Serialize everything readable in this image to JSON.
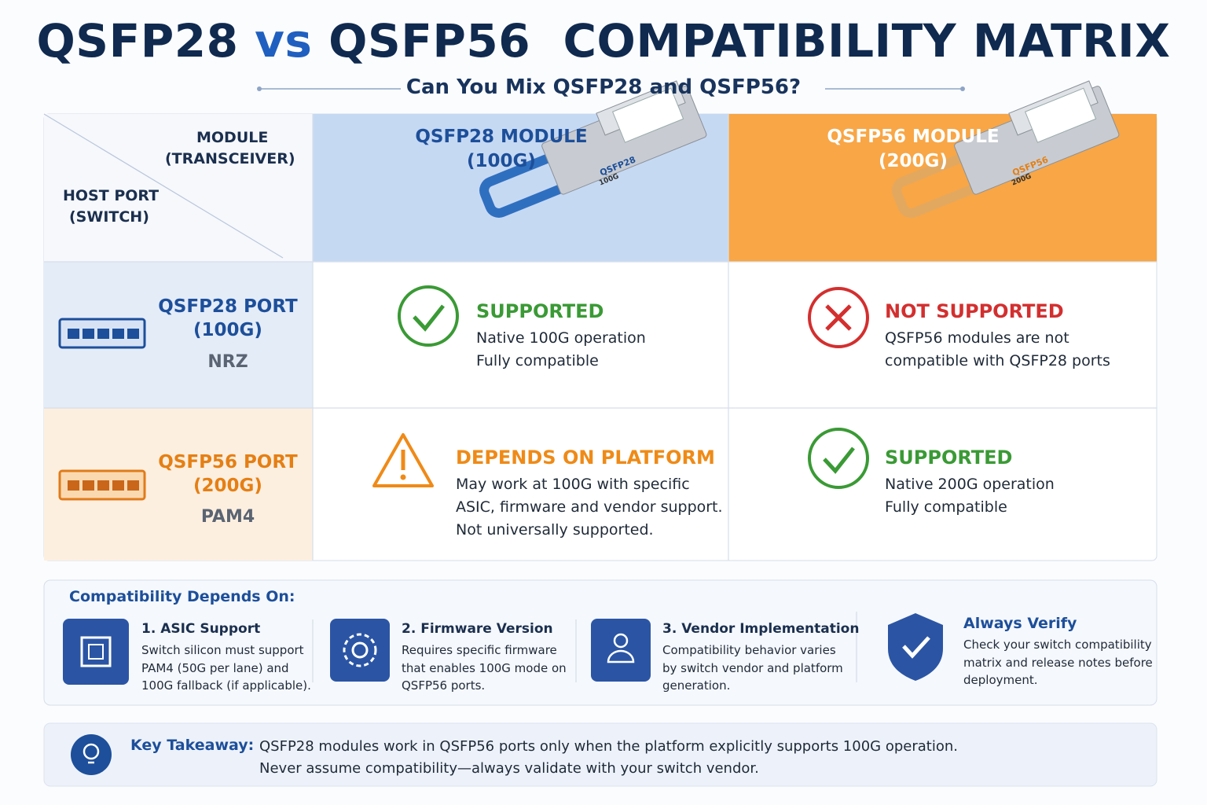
{
  "header": {
    "title_parts": [
      "QSFP28",
      "vs",
      "QSFP56  COMPATIBILITY MATRIX"
    ],
    "subtitle": "Can You Mix QSFP28 and QSFP56?"
  },
  "matrix": {
    "corner": {
      "module_lines": [
        "MODULE",
        "(TRANSCEIVER)"
      ],
      "host_lines": [
        "HOST PORT",
        "(SWITCH)"
      ]
    },
    "columns": [
      {
        "name": "QSFP28 MODULE",
        "speed": "(100G)",
        "module_label": "QSFP28",
        "module_speed": "100G"
      },
      {
        "name": "QSFP56 MODULE",
        "speed": "(200G)",
        "module_label": "QSFP56",
        "module_speed": "200G"
      }
    ],
    "rows": [
      {
        "name": "QSFP28 PORT",
        "speed": "(100G)",
        "encoding": "NRZ",
        "cells": [
          {
            "status": "SUPPORTED",
            "lines": [
              "Native 100G operation",
              "Fully compatible"
            ]
          },
          {
            "status": "NOT SUPPORTED",
            "lines": [
              "QSFP56 modules are not",
              "compatible with QSFP28 ports"
            ]
          }
        ]
      },
      {
        "name": "QSFP56 PORT",
        "speed": "(200G)",
        "encoding": "PAM4",
        "cells": [
          {
            "status": "DEPENDS ON PLATFORM",
            "lines": [
              "May work at 100G with specific",
              "ASIC, firmware and vendor support.",
              "Not universally supported."
            ]
          },
          {
            "status": "SUPPORTED",
            "lines": [
              "Native 200G operation",
              "Fully compatible"
            ]
          }
        ]
      }
    ]
  },
  "depends": {
    "heading": "Compatibility Depends On:",
    "items": [
      {
        "title": "1. ASIC Support",
        "lines": [
          "Switch silicon must support",
          "PAM4 (50G per lane) and",
          "100G fallback (if applicable)."
        ]
      },
      {
        "title": "2. Firmware Version",
        "lines": [
          "Requires specific firmware",
          "that enables 100G mode on",
          "QSFP56 ports."
        ]
      },
      {
        "title": "3. Vendor Implementation",
        "lines": [
          "Compatibility behavior varies",
          "by switch vendor and platform",
          "generation."
        ]
      }
    ],
    "verify": {
      "title": "Always Verify",
      "lines": [
        "Check your switch compatibility",
        "matrix and release notes before",
        "deployment."
      ]
    }
  },
  "takeaway": {
    "label": "Key Takeaway:",
    "lines": [
      "QSFP28 modules work in QSFP56 ports only when the platform explicitly supports 100G operation.",
      "Never assume compatibility—always validate with your switch vendor."
    ]
  }
}
